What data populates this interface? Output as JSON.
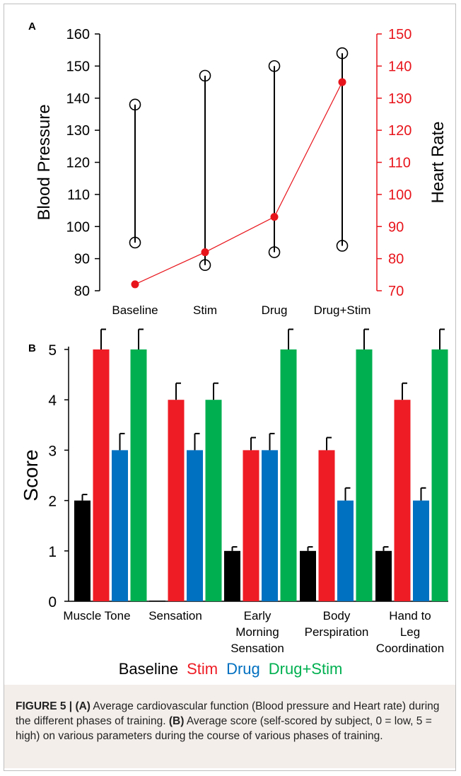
{
  "chart_data": [
    {
      "type": "scatter",
      "panel_label": "A",
      "categories": [
        "Baseline",
        "Stim",
        "Drug",
        "Drug+Stim"
      ],
      "ylabel": "Blood Pressure",
      "ylim": [
        80,
        160
      ],
      "yticks": [
        80,
        90,
        100,
        110,
        120,
        130,
        140,
        150,
        160
      ],
      "y2label": "Heart Rate",
      "y2lim": [
        70,
        150
      ],
      "y2ticks": [
        70,
        80,
        90,
        100,
        110,
        120,
        130,
        140,
        150
      ],
      "series": [
        {
          "role": "systolic",
          "values": [
            138,
            147,
            150,
            154
          ]
        },
        {
          "role": "diastolic",
          "values": [
            95,
            88,
            92,
            94
          ]
        },
        {
          "role": "heart_rate",
          "axis": "right",
          "values": [
            72,
            82,
            93,
            135
          ]
        }
      ],
      "colors": {
        "blood_pressure": "#000000",
        "heart_rate": "#e8141b"
      }
    },
    {
      "type": "bar",
      "panel_label": "B",
      "categories": [
        [
          "Muscle Tone"
        ],
        [
          "Sensation"
        ],
        [
          "Early",
          "Morning",
          "Sensation"
        ],
        [
          "Body",
          "Perspiration"
        ],
        [
          "Hand to",
          "Leg",
          "Coordination"
        ]
      ],
      "ylabel": "Score",
      "ylim": [
        0,
        5
      ],
      "yticks": [
        0,
        1,
        2,
        3,
        4,
        5
      ],
      "series": [
        {
          "name": "Baseline",
          "color": "#000000",
          "values": [
            2,
            0,
            1,
            1,
            1
          ],
          "errors": [
            0.12,
            0,
            0.08,
            0.08,
            0.08
          ]
        },
        {
          "name": "Stim",
          "color": "#ee1c25",
          "values": [
            5,
            4,
            3,
            3,
            4
          ],
          "errors": [
            0.4,
            0.33,
            0.25,
            0.25,
            0.33
          ]
        },
        {
          "name": "Drug",
          "color": "#0070c0",
          "values": [
            3,
            3,
            3,
            2,
            2
          ],
          "errors": [
            0.33,
            0.33,
            0.33,
            0.25,
            0.25
          ]
        },
        {
          "name": "Drug+Stim",
          "color": "#00b050",
          "values": [
            5,
            4,
            5,
            5,
            5
          ],
          "errors": [
            0.4,
            0.33,
            0.4,
            0.4,
            0.4
          ]
        }
      ]
    }
  ],
  "caption": {
    "label": "FIGURE 5 | ",
    "a_label": "(A)",
    "a_text": " Average cardiovascular function (Blood pressure and Heart rate) during the different phases of training. ",
    "b_label": "(B)",
    "b_text": " Average score (self-scored by subject, 0 = low, 5 = high) on various parameters during the course of various phases of training."
  }
}
